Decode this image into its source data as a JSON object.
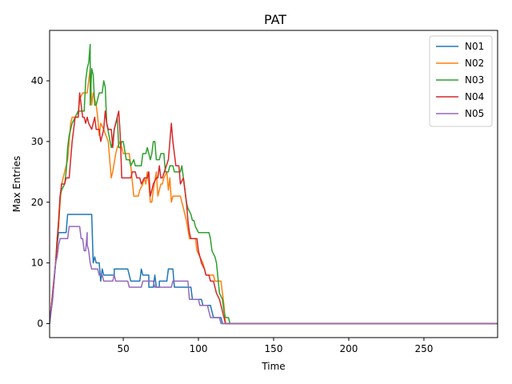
{
  "chart_data": {
    "type": "line",
    "title": "PAT",
    "xlabel": "Time",
    "ylabel": "Max Entries",
    "xlim": [
      1,
      299
    ],
    "ylim": [
      -2.3,
      48.3
    ],
    "xticks": [
      50,
      100,
      150,
      200,
      250
    ],
    "yticks": [
      0,
      10,
      20,
      30,
      40
    ],
    "grid": false,
    "legend_position": "top-right",
    "series": [
      {
        "name": "N01",
        "color": "#1f77b4",
        "points": [
          [
            1,
            0
          ],
          [
            3,
            4
          ],
          [
            5,
            10
          ],
          [
            6,
            13
          ],
          [
            7,
            15
          ],
          [
            12,
            15
          ],
          [
            13,
            18
          ],
          [
            29,
            18
          ],
          [
            30,
            10
          ],
          [
            31,
            11
          ],
          [
            32,
            10
          ],
          [
            34,
            10
          ],
          [
            35,
            7
          ],
          [
            36,
            9
          ],
          [
            37,
            8
          ],
          [
            44,
            8
          ],
          [
            44,
            9
          ],
          [
            53,
            9
          ],
          [
            54,
            8
          ],
          [
            55,
            7
          ],
          [
            61,
            7
          ],
          [
            62,
            9
          ],
          [
            63,
            8
          ],
          [
            67,
            8
          ],
          [
            67,
            6
          ],
          [
            70,
            6
          ],
          [
            71,
            8
          ],
          [
            72,
            6
          ],
          [
            74,
            6
          ],
          [
            74,
            7
          ],
          [
            79,
            7
          ],
          [
            80,
            9
          ],
          [
            83,
            9
          ],
          [
            84,
            6
          ],
          [
            95,
            6
          ],
          [
            96,
            4
          ],
          [
            102,
            4
          ],
          [
            103,
            3
          ],
          [
            108,
            3
          ],
          [
            110,
            1
          ],
          [
            115,
            1
          ],
          [
            116,
            0
          ],
          [
            299,
            0
          ]
        ]
      },
      {
        "name": "N02",
        "color": "#ff7f0e",
        "points": [
          [
            1,
            0
          ],
          [
            3,
            5
          ],
          [
            5,
            10
          ],
          [
            6,
            14
          ],
          [
            7,
            16
          ],
          [
            8,
            20
          ],
          [
            9,
            23
          ],
          [
            13,
            27
          ],
          [
            15,
            33
          ],
          [
            16,
            34
          ],
          [
            20,
            34
          ],
          [
            21,
            37
          ],
          [
            23,
            38
          ],
          [
            26,
            38
          ],
          [
            27,
            40
          ],
          [
            28,
            42
          ],
          [
            29,
            36
          ],
          [
            30,
            38
          ],
          [
            32,
            36
          ],
          [
            33,
            34
          ],
          [
            34,
            31
          ],
          [
            35,
            33
          ],
          [
            37,
            32
          ],
          [
            40,
            30
          ],
          [
            42,
            24
          ],
          [
            43,
            25
          ],
          [
            45,
            28
          ],
          [
            46,
            29
          ],
          [
            48,
            30
          ],
          [
            50,
            28
          ],
          [
            54,
            28
          ],
          [
            55,
            26
          ],
          [
            57,
            21
          ],
          [
            60,
            21
          ],
          [
            61,
            22
          ],
          [
            63,
            23
          ],
          [
            64,
            24
          ],
          [
            65,
            23
          ],
          [
            66,
            25
          ],
          [
            67,
            23
          ],
          [
            68,
            20
          ],
          [
            69,
            20
          ],
          [
            70,
            22
          ],
          [
            72,
            25
          ],
          [
            73,
            21
          ],
          [
            74,
            22
          ],
          [
            75,
            23
          ],
          [
            76,
            23
          ],
          [
            77,
            24
          ],
          [
            79,
            25
          ],
          [
            80,
            22
          ],
          [
            81,
            24
          ],
          [
            82,
            20
          ],
          [
            83,
            21
          ],
          [
            88,
            21
          ],
          [
            89,
            20
          ],
          [
            90,
            19
          ],
          [
            92,
            17
          ],
          [
            94,
            14
          ],
          [
            98,
            14
          ],
          [
            99,
            12
          ],
          [
            101,
            11
          ],
          [
            103,
            10
          ],
          [
            105,
            8
          ],
          [
            110,
            8
          ],
          [
            111,
            7
          ],
          [
            115,
            7
          ],
          [
            116,
            5
          ],
          [
            117,
            3
          ],
          [
            118,
            0
          ],
          [
            299,
            0
          ]
        ]
      },
      {
        "name": "N03",
        "color": "#2ca02c",
        "points": [
          [
            1,
            0
          ],
          [
            3,
            5
          ],
          [
            5,
            10
          ],
          [
            6,
            14
          ],
          [
            7,
            17
          ],
          [
            8,
            21
          ],
          [
            9,
            22
          ],
          [
            11,
            23
          ],
          [
            12,
            25
          ],
          [
            13,
            29
          ],
          [
            14,
            31
          ],
          [
            15,
            32
          ],
          [
            16,
            33
          ],
          [
            20,
            35
          ],
          [
            24,
            35
          ],
          [
            25,
            40
          ],
          [
            26,
            42
          ],
          [
            27,
            43
          ],
          [
            28,
            46
          ],
          [
            28,
            36
          ],
          [
            29,
            42
          ],
          [
            30,
            41
          ],
          [
            31,
            36
          ],
          [
            32,
            36
          ],
          [
            34,
            38
          ],
          [
            36,
            38
          ],
          [
            37,
            40
          ],
          [
            38,
            39
          ],
          [
            39,
            33
          ],
          [
            42,
            29
          ],
          [
            43,
            30
          ],
          [
            44,
            32
          ],
          [
            45,
            33
          ],
          [
            46,
            34
          ],
          [
            47,
            29
          ],
          [
            48,
            29
          ],
          [
            49,
            30
          ],
          [
            50,
            30
          ],
          [
            52,
            27
          ],
          [
            54,
            27
          ],
          [
            55,
            26
          ],
          [
            57,
            27
          ],
          [
            58,
            26
          ],
          [
            60,
            26
          ],
          [
            62,
            26
          ],
          [
            63,
            28
          ],
          [
            65,
            28
          ],
          [
            66,
            29
          ],
          [
            68,
            27
          ],
          [
            69,
            28
          ],
          [
            70,
            30
          ],
          [
            71,
            30
          ],
          [
            72,
            27
          ],
          [
            74,
            27
          ],
          [
            75,
            28
          ],
          [
            77,
            28
          ],
          [
            78,
            25
          ],
          [
            80,
            25
          ],
          [
            81,
            26
          ],
          [
            83,
            26
          ],
          [
            84,
            25
          ],
          [
            88,
            25
          ],
          [
            89,
            26
          ],
          [
            90,
            24
          ],
          [
            91,
            22
          ],
          [
            92,
            20
          ],
          [
            93,
            19
          ],
          [
            95,
            18
          ],
          [
            96,
            17
          ],
          [
            97,
            17
          ],
          [
            98,
            16
          ],
          [
            100,
            15
          ],
          [
            107,
            15
          ],
          [
            108,
            14
          ],
          [
            109,
            12
          ],
          [
            111,
            11
          ],
          [
            112,
            10
          ],
          [
            114,
            5
          ],
          [
            116,
            4
          ],
          [
            117,
            2
          ],
          [
            118,
            1
          ],
          [
            120,
            1
          ],
          [
            121,
            0
          ],
          [
            299,
            0
          ]
        ]
      },
      {
        "name": "N04",
        "color": "#d62728",
        "points": [
          [
            1,
            0
          ],
          [
            3,
            5
          ],
          [
            5,
            10
          ],
          [
            6,
            13
          ],
          [
            7,
            17
          ],
          [
            8,
            21
          ],
          [
            9,
            23
          ],
          [
            11,
            23
          ],
          [
            12,
            24
          ],
          [
            14,
            24
          ],
          [
            15,
            27
          ],
          [
            16,
            30
          ],
          [
            17,
            32
          ],
          [
            18,
            34
          ],
          [
            20,
            34
          ],
          [
            21,
            38
          ],
          [
            22,
            36
          ],
          [
            23,
            34
          ],
          [
            24,
            34
          ],
          [
            25,
            33
          ],
          [
            26,
            34
          ],
          [
            27,
            33
          ],
          [
            29,
            32
          ],
          [
            30,
            33
          ],
          [
            31,
            34
          ],
          [
            32,
            32
          ],
          [
            34,
            32
          ],
          [
            35,
            30
          ],
          [
            36,
            31
          ],
          [
            37,
            32
          ],
          [
            38,
            35
          ],
          [
            39,
            33
          ],
          [
            40,
            32
          ],
          [
            42,
            32
          ],
          [
            43,
            29
          ],
          [
            44,
            32
          ],
          [
            46,
            34
          ],
          [
            47,
            35
          ],
          [
            48,
            31
          ],
          [
            49,
            24
          ],
          [
            55,
            24
          ],
          [
            56,
            25
          ],
          [
            58,
            25
          ],
          [
            59,
            24
          ],
          [
            61,
            24
          ],
          [
            62,
            23
          ],
          [
            64,
            24
          ],
          [
            66,
            24
          ],
          [
            67,
            25
          ],
          [
            68,
            21
          ],
          [
            70,
            23
          ],
          [
            72,
            24
          ],
          [
            73,
            24
          ],
          [
            74,
            26
          ],
          [
            75,
            24
          ],
          [
            76,
            24
          ],
          [
            80,
            27
          ],
          [
            81,
            30
          ],
          [
            82,
            33
          ],
          [
            83,
            30
          ],
          [
            84,
            28
          ],
          [
            85,
            26
          ],
          [
            87,
            26
          ],
          [
            88,
            23
          ],
          [
            90,
            24
          ],
          [
            91,
            22
          ],
          [
            92,
            20
          ],
          [
            93,
            17
          ],
          [
            94,
            15
          ],
          [
            95,
            14
          ],
          [
            99,
            14
          ],
          [
            100,
            12
          ],
          [
            101,
            11
          ],
          [
            102,
            10
          ],
          [
            104,
            9
          ],
          [
            105,
            8
          ],
          [
            107,
            8
          ],
          [
            108,
            7
          ],
          [
            110,
            7
          ],
          [
            111,
            6
          ],
          [
            112,
            5
          ],
          [
            114,
            4
          ],
          [
            115,
            3
          ],
          [
            116,
            2
          ],
          [
            117,
            1
          ],
          [
            118,
            0
          ],
          [
            299,
            0
          ]
        ]
      },
      {
        "name": "N05",
        "color": "#9467bd",
        "points": [
          [
            1,
            0
          ],
          [
            3,
            4
          ],
          [
            5,
            10
          ],
          [
            6,
            11
          ],
          [
            7,
            13
          ],
          [
            8,
            14
          ],
          [
            13,
            14
          ],
          [
            14,
            16
          ],
          [
            21,
            16
          ],
          [
            22,
            14
          ],
          [
            23,
            14
          ],
          [
            24,
            12
          ],
          [
            25,
            12
          ],
          [
            26,
            15
          ],
          [
            26,
            13
          ],
          [
            27,
            12
          ],
          [
            28,
            10
          ],
          [
            29,
            9
          ],
          [
            33,
            9
          ],
          [
            34,
            8
          ],
          [
            36,
            8
          ],
          [
            37,
            7
          ],
          [
            43,
            7
          ],
          [
            44,
            8
          ],
          [
            45,
            7
          ],
          [
            53,
            7
          ],
          [
            54,
            6
          ],
          [
            62,
            6
          ],
          [
            63,
            7
          ],
          [
            70,
            7
          ],
          [
            71,
            6
          ],
          [
            82,
            6
          ],
          [
            83,
            7
          ],
          [
            93,
            7
          ],
          [
            94,
            4
          ],
          [
            100,
            4
          ],
          [
            101,
            3
          ],
          [
            106,
            3
          ],
          [
            107,
            2
          ],
          [
            108,
            1
          ],
          [
            114,
            1
          ],
          [
            115,
            0
          ],
          [
            299,
            0
          ]
        ]
      }
    ]
  }
}
